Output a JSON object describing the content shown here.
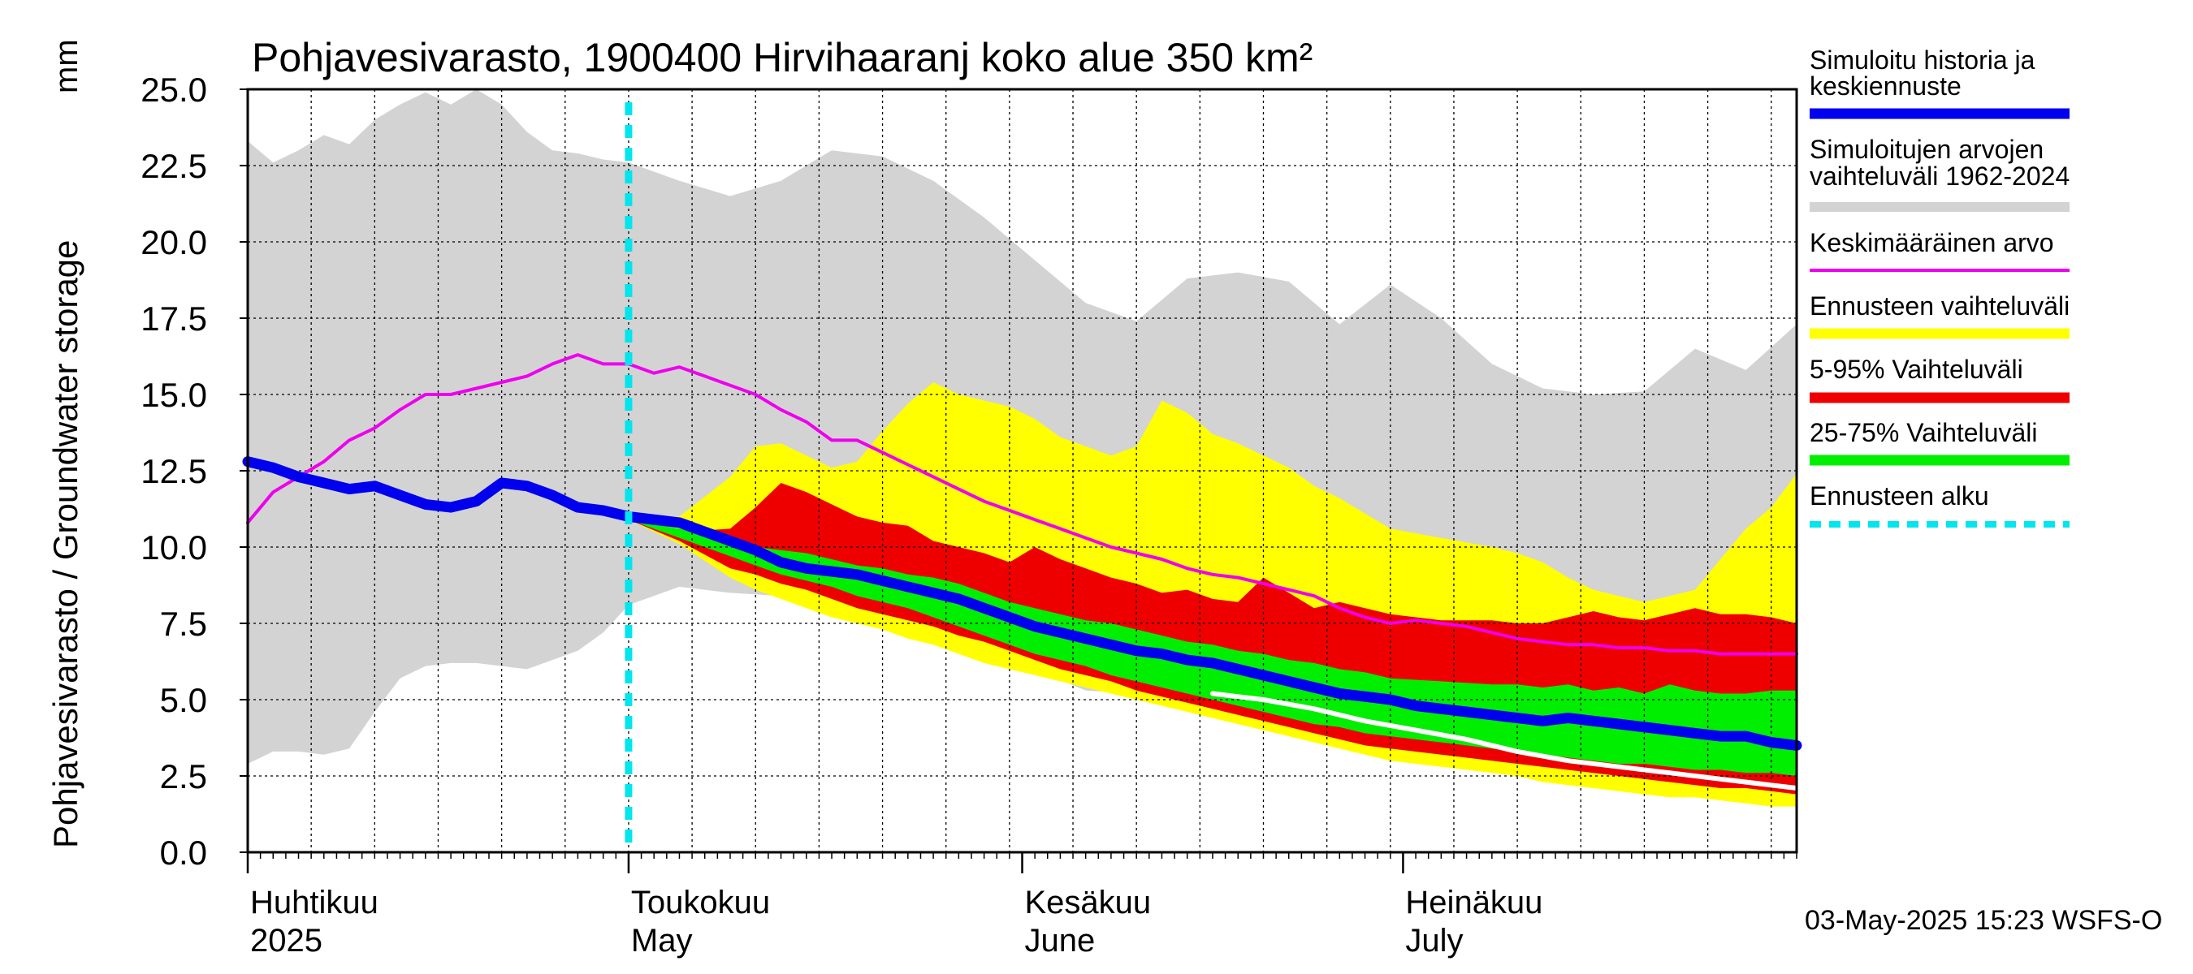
{
  "chart_data": {
    "type": "area",
    "title": "Pohjavesivarasto, 1900400 Hirvihaaranj koko alue 350 km²",
    "unit_label": "mm",
    "ylabel": "Pohjavesivarasto / Groundwater storage",
    "ylim": [
      0,
      25
    ],
    "y_ticks": [
      "0.0",
      "2.5",
      "5.0",
      "7.5",
      "10.0",
      "12.5",
      "15.0",
      "17.5",
      "20.0",
      "22.5",
      "25.0"
    ],
    "x_range_days": [
      0,
      122
    ],
    "month_labels": [
      {
        "fi": "Huhtikuu",
        "en": "2025",
        "day": 0
      },
      {
        "fi": "Toukokuu",
        "en": "May",
        "day": 30
      },
      {
        "fi": "Kesäkuu",
        "en": "June",
        "day": 61
      },
      {
        "fi": "Heinäkuu",
        "en": "July",
        "day": 91
      }
    ],
    "forecast_start_day": 30,
    "footer": "03-May-2025 15:23 WSFS-O",
    "legend": [
      {
        "label": "Simuloitu historia ja keskiennuste",
        "color": "#0000ee",
        "style": "thick"
      },
      {
        "label": "Simuloitujen arvojen vaihteluväli 1962-2024",
        "color": "#d3d3d3",
        "style": "band"
      },
      {
        "label": "Keskimääräinen arvo",
        "color": "#ee00ee",
        "style": "thin"
      },
      {
        "label": "Ennusteen vaihteluväli",
        "color": "#ffff00",
        "style": "band"
      },
      {
        "label": "5-95% Vaihteluväli",
        "color": "#ee0000",
        "style": "band"
      },
      {
        "label": "25-75% Vaihteluväli",
        "color": "#00ee00",
        "style": "band"
      },
      {
        "label": "Ennusteen alku",
        "color": "#00e5ee",
        "style": "dashed"
      }
    ],
    "series": [
      {
        "name": "hist_max",
        "x": [
          0,
          2,
          4,
          6,
          8,
          10,
          12,
          14,
          16,
          18,
          20,
          22,
          24,
          26,
          28,
          30,
          34,
          38,
          42,
          46,
          50,
          54,
          58,
          62,
          66,
          70,
          74,
          78,
          82,
          86,
          90,
          94,
          98,
          102,
          106,
          110,
          114,
          118,
          122
        ],
        "values": [
          23.3,
          22.6,
          23.0,
          23.5,
          23.2,
          24.0,
          24.5,
          24.9,
          24.5,
          25.0,
          24.5,
          23.6,
          23.0,
          22.9,
          22.7,
          22.6,
          22.0,
          21.5,
          22.0,
          23.0,
          22.8,
          22.0,
          20.8,
          19.4,
          18.0,
          17.4,
          18.8,
          19.0,
          18.7,
          17.3,
          18.6,
          17.5,
          16.0,
          15.2,
          15.0,
          15.1,
          16.5,
          15.8,
          17.3
        ]
      },
      {
        "name": "hist_min",
        "x": [
          0,
          2,
          4,
          6,
          8,
          10,
          12,
          14,
          16,
          18,
          20,
          22,
          24,
          26,
          28,
          30,
          34,
          38,
          42,
          46,
          50,
          54,
          58,
          62,
          66,
          70,
          74,
          78,
          82,
          86,
          90,
          94,
          98,
          102,
          106,
          110,
          114,
          118,
          122
        ],
        "values": [
          2.9,
          3.3,
          3.3,
          3.2,
          3.4,
          4.6,
          5.7,
          6.1,
          6.2,
          6.2,
          6.1,
          6.0,
          6.3,
          6.6,
          7.2,
          8.1,
          8.7,
          8.5,
          8.4,
          8.0,
          7.6,
          7.3,
          6.6,
          6.0,
          5.3,
          5.2,
          5.0,
          4.8,
          4.6,
          4.4,
          4.1,
          3.8,
          3.5,
          3.2,
          2.9,
          2.6,
          2.4,
          2.2,
          2.0
        ]
      },
      {
        "name": "forecast_max",
        "x": [
          30,
          34,
          38,
          40,
          42,
          44,
          46,
          48,
          50,
          52,
          54,
          56,
          58,
          60,
          62,
          64,
          66,
          68,
          70,
          72,
          74,
          76,
          78,
          80,
          82,
          84,
          86,
          88,
          90,
          94,
          98,
          100,
          102,
          104,
          106,
          108,
          110,
          112,
          114,
          116,
          118,
          120,
          122
        ],
        "values": [
          11.0,
          11.0,
          12.3,
          13.3,
          13.4,
          13.0,
          12.6,
          12.8,
          13.8,
          14.7,
          15.4,
          15.0,
          14.8,
          14.6,
          14.2,
          13.6,
          13.3,
          13.0,
          13.3,
          14.8,
          14.4,
          13.7,
          13.4,
          13.0,
          12.6,
          12.0,
          11.6,
          11.1,
          10.6,
          10.3,
          10.0,
          9.8,
          9.5,
          9.0,
          8.6,
          8.4,
          8.2,
          8.4,
          8.6,
          9.6,
          10.6,
          11.3,
          12.4
        ]
      },
      {
        "name": "p95",
        "x": [
          30,
          34,
          38,
          40,
          42,
          44,
          46,
          48,
          50,
          52,
          54,
          56,
          58,
          60,
          62,
          64,
          66,
          68,
          70,
          72,
          74,
          76,
          78,
          80,
          82,
          84,
          86,
          88,
          90,
          94,
          98,
          100,
          102,
          104,
          106,
          108,
          110,
          112,
          114,
          116,
          118,
          120,
          122
        ],
        "values": [
          10.9,
          10.5,
          10.6,
          11.3,
          12.1,
          11.8,
          11.4,
          11.0,
          10.8,
          10.7,
          10.2,
          10.0,
          9.8,
          9.5,
          10.0,
          9.6,
          9.3,
          9.0,
          8.8,
          8.5,
          8.6,
          8.3,
          8.2,
          9.0,
          8.5,
          8.0,
          8.2,
          8.0,
          7.8,
          7.6,
          7.6,
          7.5,
          7.5,
          7.7,
          7.9,
          7.7,
          7.6,
          7.8,
          8.0,
          7.8,
          7.8,
          7.7,
          7.5
        ]
      },
      {
        "name": "p75",
        "x": [
          30,
          34,
          38,
          40,
          42,
          44,
          46,
          48,
          50,
          52,
          54,
          56,
          58,
          60,
          62,
          64,
          66,
          68,
          70,
          72,
          74,
          76,
          78,
          80,
          82,
          84,
          86,
          88,
          90,
          94,
          98,
          100,
          102,
          104,
          106,
          108,
          110,
          112,
          114,
          116,
          118,
          120,
          122
        ],
        "values": [
          10.9,
          10.6,
          10.2,
          10.0,
          9.9,
          9.8,
          9.6,
          9.4,
          9.3,
          9.1,
          9.0,
          8.8,
          8.5,
          8.2,
          8.0,
          7.8,
          7.6,
          7.5,
          7.3,
          7.1,
          6.9,
          6.8,
          6.6,
          6.5,
          6.3,
          6.2,
          6.0,
          5.9,
          5.7,
          5.6,
          5.5,
          5.5,
          5.4,
          5.5,
          5.3,
          5.4,
          5.2,
          5.5,
          5.3,
          5.2,
          5.2,
          5.3,
          5.3
        ]
      },
      {
        "name": "p25",
        "x": [
          30,
          34,
          38,
          40,
          42,
          44,
          46,
          48,
          50,
          52,
          54,
          56,
          58,
          60,
          62,
          64,
          66,
          68,
          70,
          72,
          74,
          76,
          78,
          80,
          82,
          84,
          86,
          88,
          90,
          94,
          98,
          100,
          102,
          104,
          106,
          108,
          110,
          112,
          114,
          116,
          118,
          120,
          122
        ],
        "values": [
          10.9,
          10.3,
          9.7,
          9.4,
          9.1,
          8.9,
          8.7,
          8.4,
          8.2,
          8.0,
          7.7,
          7.4,
          7.1,
          6.8,
          6.5,
          6.3,
          6.1,
          5.8,
          5.6,
          5.4,
          5.2,
          5.0,
          4.8,
          4.6,
          4.4,
          4.2,
          4.1,
          3.9,
          3.8,
          3.6,
          3.4,
          3.3,
          3.2,
          3.1,
          3.0,
          2.9,
          2.9,
          2.8,
          2.7,
          2.7,
          2.6,
          2.6,
          2.5
        ]
      },
      {
        "name": "p05",
        "x": [
          30,
          34,
          38,
          40,
          42,
          44,
          46,
          48,
          50,
          52,
          54,
          56,
          58,
          60,
          62,
          64,
          66,
          68,
          70,
          72,
          74,
          76,
          78,
          80,
          82,
          84,
          86,
          88,
          90,
          94,
          98,
          100,
          102,
          104,
          106,
          108,
          110,
          112,
          114,
          116,
          118,
          120,
          122
        ],
        "values": [
          10.9,
          10.2,
          9.3,
          9.1,
          8.8,
          8.6,
          8.3,
          8.0,
          7.8,
          7.6,
          7.4,
          7.1,
          6.9,
          6.6,
          6.3,
          6.0,
          5.8,
          5.6,
          5.3,
          5.1,
          4.9,
          4.7,
          4.5,
          4.3,
          4.1,
          3.9,
          3.7,
          3.5,
          3.4,
          3.2,
          3.0,
          2.9,
          2.8,
          2.7,
          2.6,
          2.5,
          2.4,
          2.3,
          2.2,
          2.1,
          2.1,
          2.0,
          1.9
        ]
      },
      {
        "name": "forecast_min",
        "x": [
          30,
          34,
          38,
          40,
          42,
          44,
          46,
          48,
          50,
          52,
          54,
          56,
          58,
          60,
          62,
          64,
          66,
          68,
          70,
          72,
          74,
          76,
          78,
          80,
          82,
          84,
          86,
          88,
          90,
          94,
          98,
          100,
          102,
          104,
          106,
          108,
          110,
          112,
          114,
          116,
          118,
          120,
          122
        ],
        "values": [
          10.9,
          10.1,
          9.0,
          8.6,
          8.3,
          8.0,
          7.7,
          7.5,
          7.3,
          7.0,
          6.8,
          6.5,
          6.2,
          6.0,
          5.8,
          5.6,
          5.4,
          5.2,
          5.0,
          4.8,
          4.6,
          4.4,
          4.2,
          4.0,
          3.8,
          3.6,
          3.4,
          3.2,
          3.0,
          2.8,
          2.6,
          2.5,
          2.3,
          2.2,
          2.1,
          2.0,
          1.9,
          1.8,
          1.8,
          1.7,
          1.6,
          1.5,
          1.5
        ]
      },
      {
        "name": "Simuloitu historia ja keskiennuste",
        "x": [
          0,
          2,
          4,
          6,
          8,
          10,
          12,
          14,
          16,
          18,
          20,
          22,
          24,
          26,
          28,
          30,
          32,
          34,
          36,
          38,
          40,
          42,
          44,
          46,
          48,
          50,
          52,
          54,
          56,
          58,
          60,
          62,
          64,
          66,
          68,
          70,
          72,
          74,
          76,
          78,
          80,
          82,
          84,
          86,
          88,
          90,
          92,
          94,
          96,
          98,
          100,
          102,
          104,
          106,
          108,
          110,
          112,
          114,
          116,
          118,
          120,
          122
        ],
        "values": [
          12.8,
          12.6,
          12.3,
          12.1,
          11.9,
          12.0,
          11.7,
          11.4,
          11.3,
          11.5,
          12.1,
          12.0,
          11.7,
          11.3,
          11.2,
          11.0,
          10.9,
          10.8,
          10.5,
          10.2,
          9.9,
          9.5,
          9.3,
          9.2,
          9.1,
          8.9,
          8.7,
          8.5,
          8.3,
          8.0,
          7.7,
          7.4,
          7.2,
          7.0,
          6.8,
          6.6,
          6.5,
          6.3,
          6.2,
          6.0,
          5.8,
          5.6,
          5.4,
          5.2,
          5.1,
          5.0,
          4.8,
          4.7,
          4.6,
          4.5,
          4.4,
          4.3,
          4.4,
          4.3,
          4.2,
          4.1,
          4.0,
          3.9,
          3.8,
          3.8,
          3.6,
          3.5
        ]
      },
      {
        "name": "Keskimääräinen arvo",
        "x": [
          0,
          2,
          4,
          6,
          8,
          10,
          12,
          14,
          16,
          18,
          20,
          22,
          24,
          26,
          28,
          30,
          32,
          34,
          36,
          38,
          40,
          42,
          44,
          46,
          48,
          50,
          52,
          54,
          56,
          58,
          60,
          62,
          64,
          66,
          68,
          70,
          72,
          74,
          76,
          78,
          80,
          82,
          84,
          86,
          88,
          90,
          92,
          94,
          96,
          98,
          100,
          102,
          104,
          106,
          108,
          110,
          112,
          114,
          116,
          118,
          120,
          122
        ],
        "values": [
          10.8,
          11.8,
          12.3,
          12.8,
          13.5,
          13.9,
          14.5,
          15.0,
          15.0,
          15.2,
          15.4,
          15.6,
          16.0,
          16.3,
          16.0,
          16.0,
          15.7,
          15.9,
          15.6,
          15.3,
          15.0,
          14.5,
          14.1,
          13.5,
          13.5,
          13.1,
          12.7,
          12.3,
          11.9,
          11.5,
          11.2,
          10.9,
          10.6,
          10.3,
          10.0,
          9.8,
          9.6,
          9.3,
          9.1,
          9.0,
          8.8,
          8.6,
          8.4,
          8.0,
          7.7,
          7.5,
          7.6,
          7.5,
          7.4,
          7.2,
          7.0,
          6.9,
          6.8,
          6.8,
          6.7,
          6.7,
          6.6,
          6.6,
          6.5,
          6.5,
          6.5,
          6.5
        ]
      },
      {
        "name": "simulated_observed_white",
        "x": [
          76,
          80,
          84,
          88,
          92,
          96,
          100,
          104,
          108,
          112,
          116,
          120,
          122
        ],
        "values": [
          5.2,
          5.0,
          4.7,
          4.3,
          4.0,
          3.7,
          3.3,
          3.0,
          2.8,
          2.6,
          2.4,
          2.2,
          2.1
        ]
      }
    ]
  }
}
